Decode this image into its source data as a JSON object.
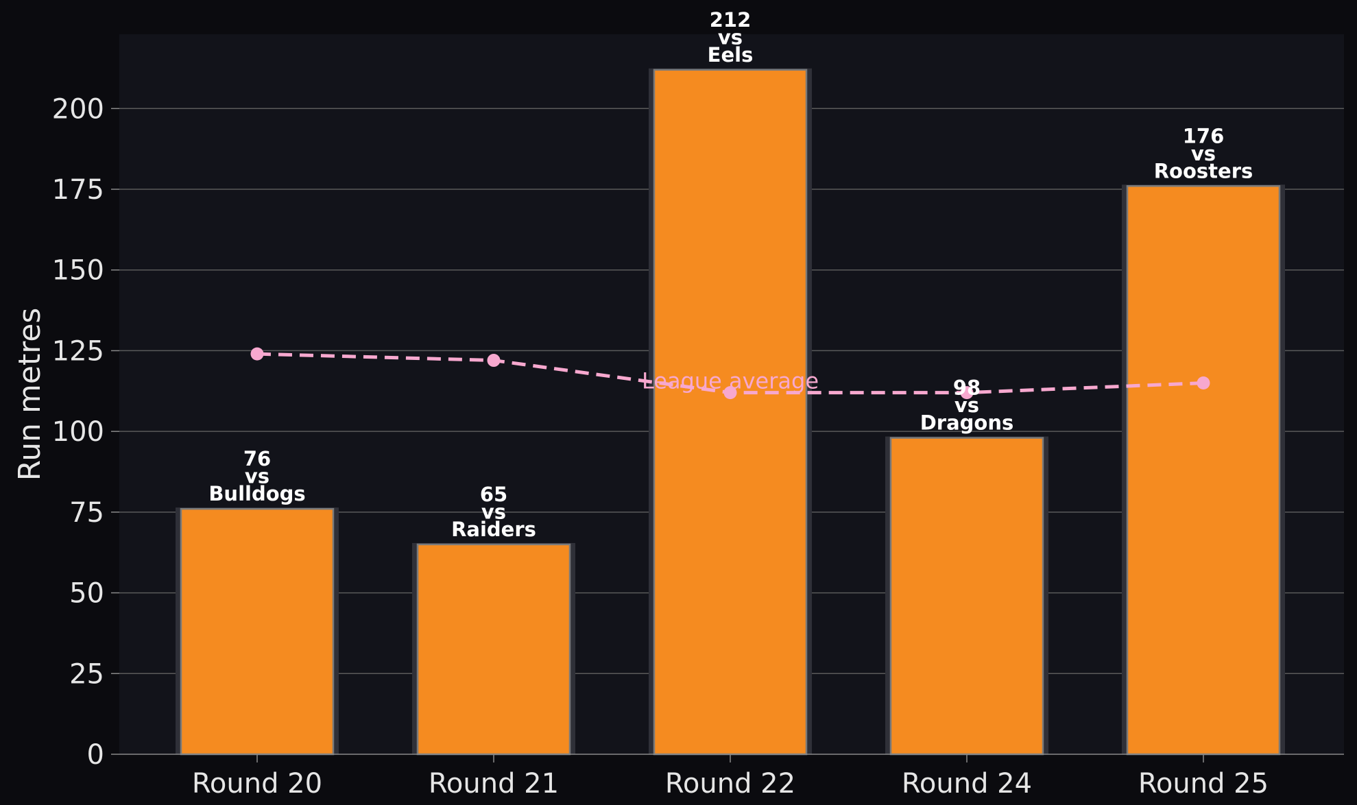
{
  "chart_data": {
    "type": "bar",
    "title": "",
    "xlabel": "",
    "ylabel": "Run metres",
    "categories": [
      "Round 20",
      "Round 21",
      "Round 22",
      "Round 24",
      "Round 25"
    ],
    "opponents": [
      "Bulldogs",
      "Raiders",
      "Eels",
      "Dragons",
      "Roosters"
    ],
    "vs_text": "vs",
    "series": [
      {
        "type": "bar",
        "values": [
          76,
          65,
          212,
          98,
          176
        ]
      },
      {
        "name": "League average",
        "type": "line",
        "style": "dashed",
        "values": [
          124,
          122,
          112,
          112,
          115
        ]
      }
    ],
    "ylim": [
      0,
      223
    ],
    "yticks": [
      0,
      25,
      50,
      75,
      100,
      125,
      150,
      175,
      200
    ],
    "grid": true,
    "colors": {
      "background": "#0b0b0f",
      "plot_background": "#12131a",
      "bar": "#f58b20",
      "bar_edge": "#7a7a7a",
      "bar_shadow": "#2f3038",
      "average_line": "#f7a8cf",
      "grid": "#5a5a5a",
      "text": "#e6e6e6"
    }
  }
}
